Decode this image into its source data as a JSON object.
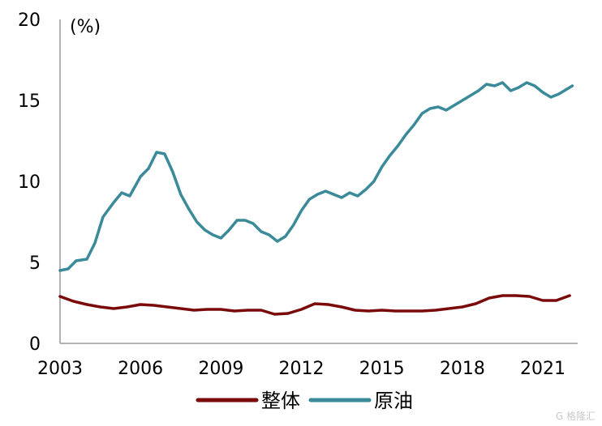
{
  "chart_data": {
    "type": "line",
    "unit_label": "(%)",
    "xlim": [
      2003,
      2022.3
    ],
    "ylim": [
      0,
      20
    ],
    "x_ticks": [
      "2003",
      "2006",
      "2009",
      "2012",
      "2015",
      "2018",
      "2021"
    ],
    "x_tick_values": [
      2003,
      2006,
      2009,
      2012,
      2015,
      2018,
      2021
    ],
    "y_ticks": [
      "0",
      "5",
      "10",
      "15",
      "20"
    ],
    "y_tick_values": [
      0,
      5,
      10,
      15,
      20
    ],
    "grid": false,
    "legend_position": "bottom",
    "series": [
      {
        "name": "整体",
        "color": "#7a0a0a",
        "x": [
          2003,
          2003.5,
          2004,
          2004.5,
          2005,
          2005.5,
          2006,
          2006.5,
          2007,
          2007.5,
          2008,
          2008.5,
          2009,
          2009.5,
          2010,
          2010.5,
          2011,
          2011.5,
          2012,
          2012.5,
          2013,
          2013.5,
          2014,
          2014.5,
          2015,
          2015.5,
          2016,
          2016.5,
          2017,
          2017.5,
          2018,
          2018.5,
          2019,
          2019.5,
          2020,
          2020.5,
          2021,
          2021.5,
          2022
        ],
        "values": [
          2.9,
          2.6,
          2.4,
          2.25,
          2.15,
          2.25,
          2.4,
          2.35,
          2.25,
          2.15,
          2.05,
          2.1,
          2.1,
          2.0,
          2.05,
          2.05,
          1.8,
          1.85,
          2.1,
          2.45,
          2.4,
          2.25,
          2.05,
          2.0,
          2.05,
          2.0,
          2.0,
          2.0,
          2.05,
          2.15,
          2.25,
          2.45,
          2.8,
          2.95,
          2.95,
          2.9,
          2.65,
          2.65,
          2.95
        ]
      },
      {
        "name": "原油",
        "color": "#3a8a99",
        "x": [
          2003,
          2003.3,
          2003.6,
          2004,
          2004.3,
          2004.6,
          2005,
          2005.3,
          2005.6,
          2006,
          2006.3,
          2006.6,
          2006.9,
          2007.2,
          2007.5,
          2007.8,
          2008.1,
          2008.4,
          2008.7,
          2009,
          2009.3,
          2009.6,
          2009.9,
          2010.2,
          2010.5,
          2010.8,
          2011.1,
          2011.4,
          2011.7,
          2012,
          2012.3,
          2012.6,
          2012.9,
          2013.2,
          2013.5,
          2013.8,
          2014.1,
          2014.4,
          2014.7,
          2015,
          2015.3,
          2015.6,
          2015.9,
          2016.2,
          2016.5,
          2016.8,
          2017.1,
          2017.4,
          2017.7,
          2018,
          2018.3,
          2018.6,
          2018.9,
          2019.2,
          2019.5,
          2019.8,
          2020.1,
          2020.4,
          2020.7,
          2021,
          2021.3,
          2021.6,
          2021.9,
          2022.1
        ],
        "values": [
          4.5,
          4.6,
          5.1,
          5.2,
          6.2,
          7.8,
          8.7,
          9.3,
          9.1,
          10.3,
          10.8,
          11.8,
          11.7,
          10.6,
          9.2,
          8.3,
          7.5,
          7.0,
          6.7,
          6.5,
          7.0,
          7.6,
          7.6,
          7.4,
          6.9,
          6.7,
          6.3,
          6.6,
          7.3,
          8.2,
          8.9,
          9.2,
          9.4,
          9.2,
          9.0,
          9.3,
          9.1,
          9.5,
          10.0,
          10.9,
          11.6,
          12.2,
          12.9,
          13.5,
          14.2,
          14.5,
          14.6,
          14.4,
          14.7,
          15.0,
          15.3,
          15.6,
          16.0,
          15.9,
          16.1,
          15.6,
          15.8,
          16.1,
          15.9,
          15.5,
          15.2,
          15.4,
          15.7,
          15.9
        ]
      }
    ]
  },
  "watermark": "G 格隆汇"
}
